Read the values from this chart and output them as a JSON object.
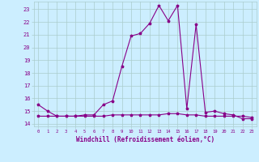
{
  "xlabel": "Windchill (Refroidissement éolien,°C)",
  "x_values": [
    0,
    1,
    2,
    3,
    4,
    5,
    6,
    7,
    8,
    9,
    10,
    11,
    12,
    13,
    14,
    15,
    16,
    17,
    18,
    19,
    20,
    21,
    22,
    23
  ],
  "y_line1": [
    15.5,
    15.0,
    14.6,
    14.6,
    14.6,
    14.7,
    14.7,
    15.5,
    15.8,
    18.5,
    20.9,
    21.1,
    21.9,
    23.3,
    22.1,
    23.3,
    15.2,
    21.8,
    14.9,
    15.0,
    14.8,
    14.7,
    14.4,
    14.4
  ],
  "y_line2": [
    14.6,
    14.6,
    14.6,
    14.6,
    14.6,
    14.6,
    14.6,
    14.6,
    14.7,
    14.7,
    14.7,
    14.7,
    14.7,
    14.7,
    14.8,
    14.8,
    14.7,
    14.7,
    14.6,
    14.6,
    14.6,
    14.6,
    14.6,
    14.5
  ],
  "line_color": "#880088",
  "bg_color": "#cceeff",
  "grid_color": "#aacccc",
  "ylim": [
    13.8,
    23.6
  ],
  "yticks": [
    14,
    15,
    16,
    17,
    18,
    19,
    20,
    21,
    22,
    23
  ],
  "xlim": [
    -0.5,
    23.5
  ]
}
